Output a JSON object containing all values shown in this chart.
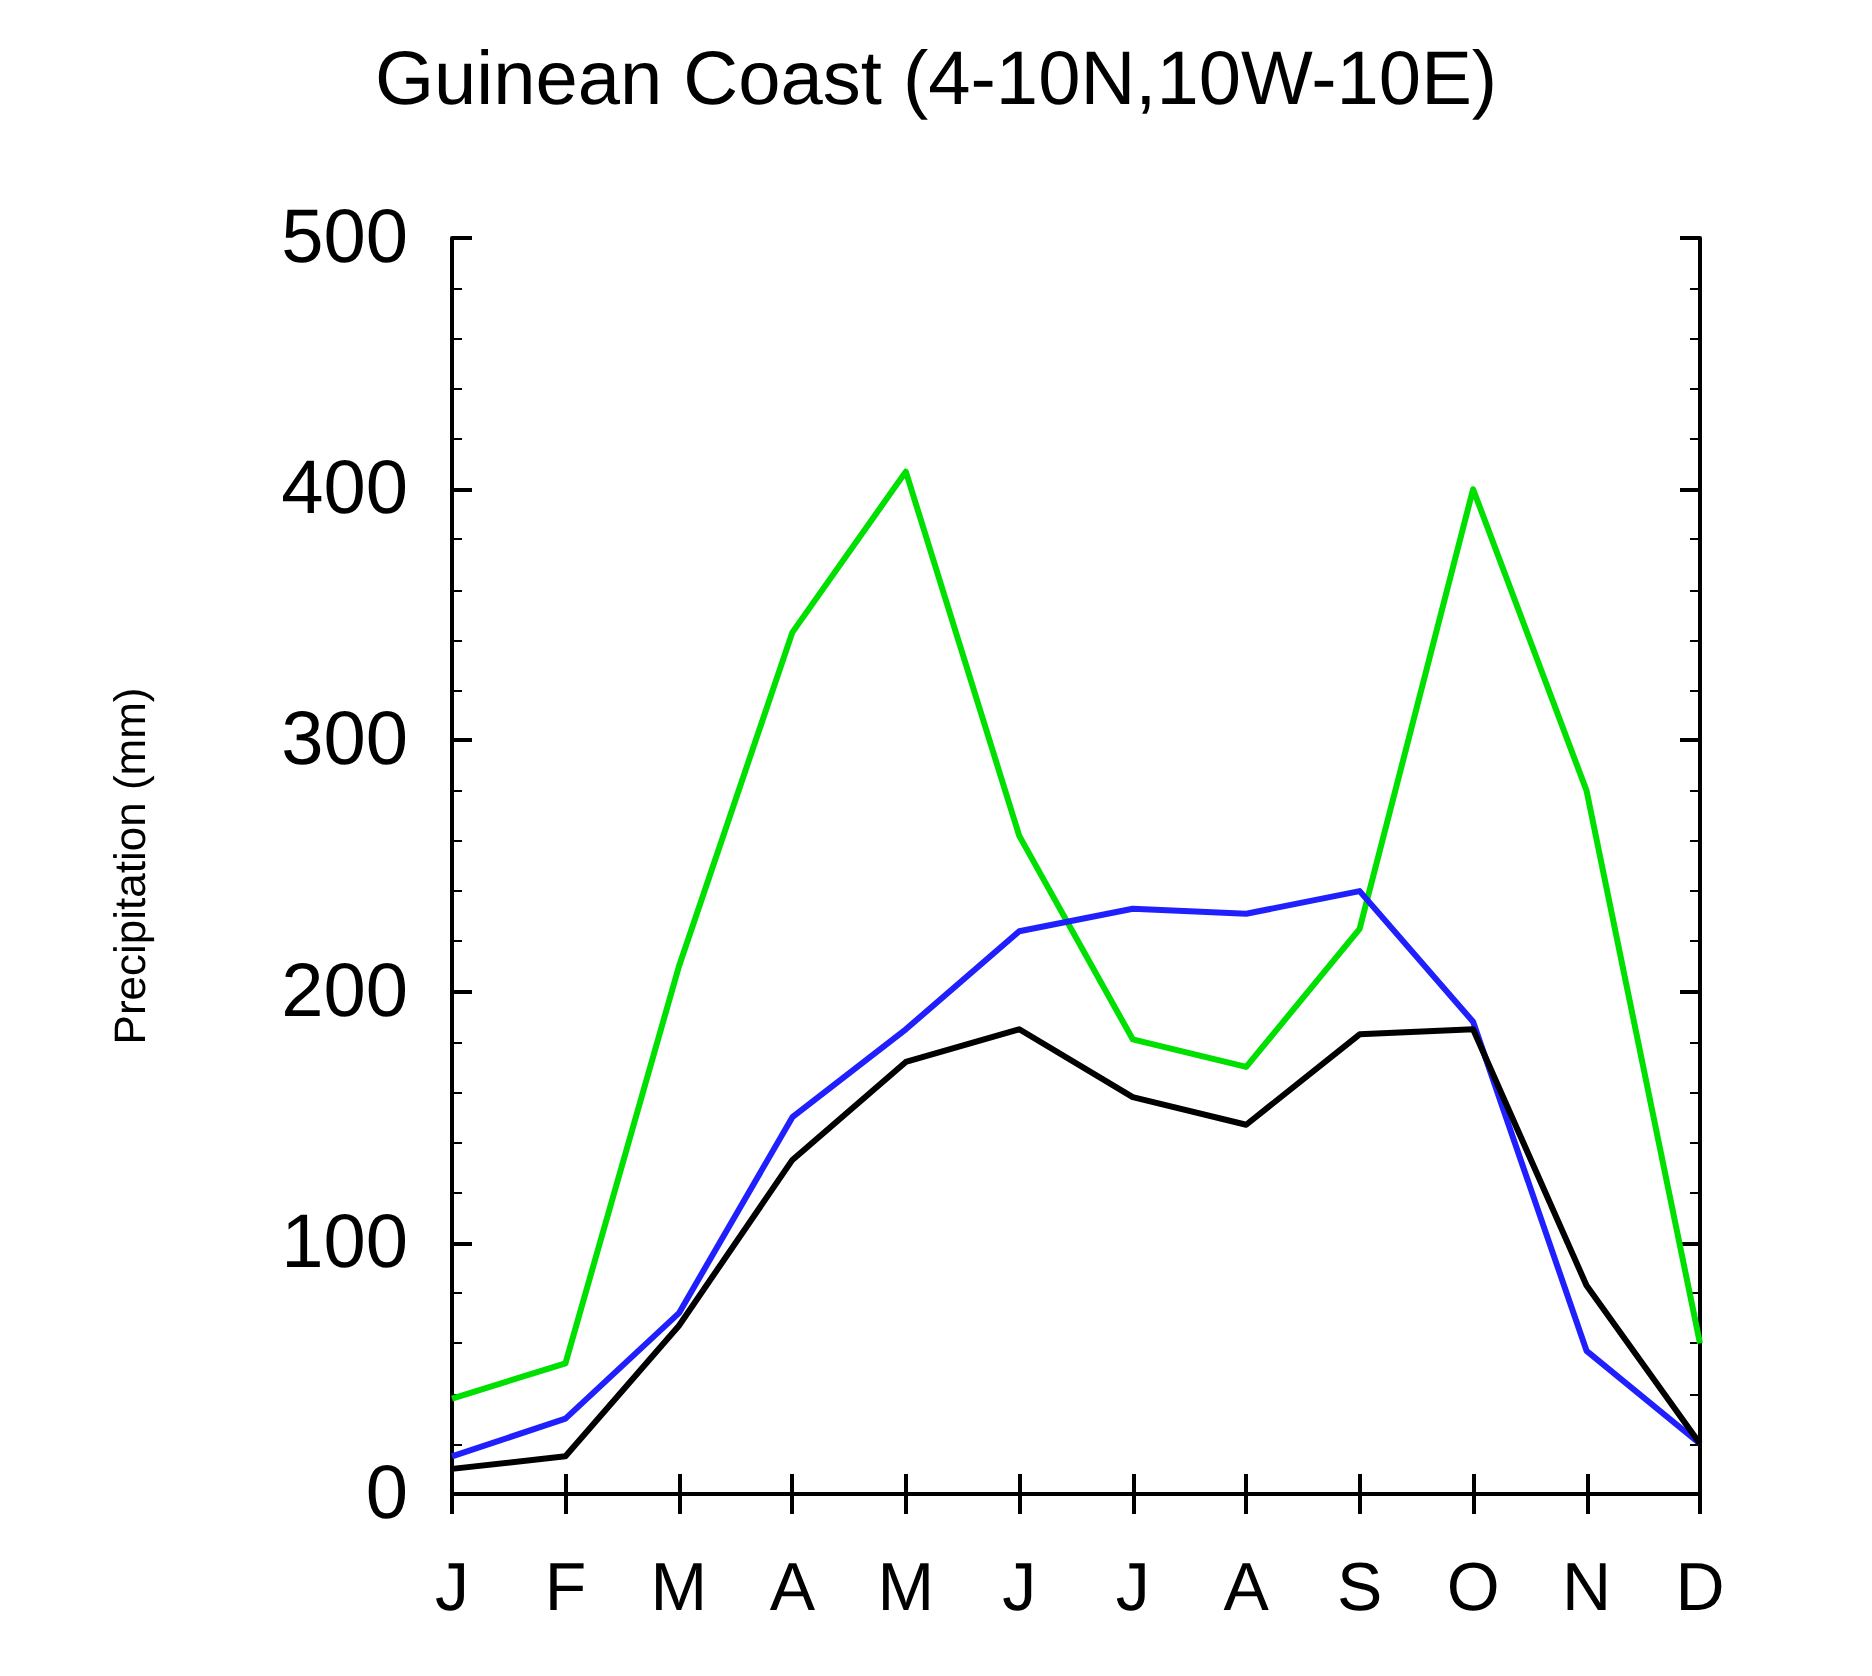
{
  "chart_data": {
    "type": "line",
    "title": "Guinean Coast (4-10N,10W-10E)",
    "ylabel": "Precipitation (mm)",
    "categories": [
      "J",
      "F",
      "M",
      "A",
      "M",
      "J",
      "J",
      "A",
      "S",
      "O",
      "N",
      "D"
    ],
    "series": [
      {
        "color": "#00e000",
        "values": [
          38,
          52,
          210,
          343,
          407,
          262,
          181,
          170,
          225,
          400,
          280,
          60
        ]
      },
      {
        "color": "#2020ff",
        "values": [
          15,
          30,
          72,
          150,
          185,
          224,
          233,
          231,
          240,
          188,
          57,
          20
        ]
      },
      {
        "color": "#000000",
        "values": [
          10,
          15,
          67,
          133,
          172,
          185,
          158,
          147,
          183,
          185,
          83,
          20
        ]
      }
    ],
    "ylim": [
      0,
      500
    ],
    "yticks": [
      0,
      100,
      200,
      300,
      400,
      500
    ],
    "grid": false,
    "marker": "none",
    "line_style": "solid"
  }
}
